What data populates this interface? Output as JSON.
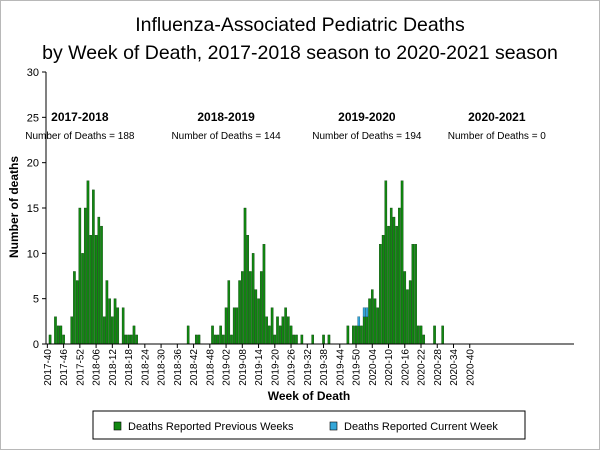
{
  "chart_data": {
    "type": "bar",
    "title_line1": "Influenza-Associated Pediatric Deaths",
    "title_line2": "by Week of Death, 2017-2018 season to 2020-2021 season",
    "xlabel": "Week of Death",
    "ylabel": "Number of deaths",
    "ylim": [
      0,
      30
    ],
    "yticks": [
      0,
      5,
      10,
      15,
      20,
      25,
      30
    ],
    "grid": false,
    "legend_position": "bottom",
    "colors": {
      "previous": "#118811",
      "current": "#33a6d8",
      "edge": "#003300"
    },
    "x_tick_labels": [
      "2017-40",
      "2017-46",
      "2017-52",
      "2018-06",
      "2018-12",
      "2018-18",
      "2018-24",
      "2018-30",
      "2018-36",
      "2018-42",
      "2018-48",
      "2019-02",
      "2019-08",
      "2019-14",
      "2019-20",
      "2019-26",
      "2019-32",
      "2019-38",
      "2019-44",
      "2019-50",
      "2020-04",
      "2020-10",
      "2020-16",
      "2020-22",
      "2020-28",
      "2020-34",
      "2020-40"
    ],
    "season_labels": [
      {
        "name": "2017-2018",
        "deaths": "Number of Deaths = 188",
        "week_index": 12
      },
      {
        "name": "2018-2019",
        "deaths": "Number of Deaths = 144",
        "week_index": 66
      },
      {
        "name": "2019-2020",
        "deaths": "Number of Deaths = 194",
        "week_index": 118
      },
      {
        "name": "2020-2021",
        "deaths": "Number of Deaths = 0",
        "week_index": 166
      }
    ],
    "series": [
      {
        "name": "Deaths Reported Previous Weeks",
        "values": [
          0,
          1,
          0,
          3,
          2,
          2,
          1,
          0,
          0,
          3,
          8,
          7,
          15,
          10,
          15,
          18,
          12,
          17,
          12,
          14,
          13,
          3,
          7,
          5,
          3,
          5,
          4,
          0,
          4,
          1,
          1,
          1,
          2,
          1,
          0,
          0,
          0,
          0,
          0,
          0,
          0,
          0,
          0,
          0,
          0,
          0,
          0,
          0,
          0,
          0,
          0,
          0,
          2,
          0,
          0,
          1,
          1,
          0,
          0,
          0,
          0,
          2,
          1,
          1,
          2,
          1,
          4,
          7,
          1,
          4,
          4,
          7,
          8,
          15,
          12,
          8,
          10,
          6,
          5,
          8,
          11,
          3,
          2,
          4,
          1,
          3,
          2,
          3,
          4,
          3,
          2,
          1,
          1,
          0,
          1,
          0,
          0,
          0,
          1,
          0,
          0,
          0,
          1,
          0,
          1,
          0,
          0,
          0,
          0,
          0,
          0,
          2,
          0,
          2,
          2,
          2,
          2,
          3,
          3,
          5,
          6,
          5,
          4,
          11,
          12,
          18,
          13,
          15,
          14,
          13,
          15,
          18,
          8,
          6,
          7,
          11,
          11,
          2,
          2,
          1,
          0,
          0,
          0,
          2,
          0,
          0,
          2,
          0,
          0,
          0,
          0,
          0,
          0,
          0,
          0,
          0,
          0,
          0,
          0,
          0,
          0,
          0,
          0,
          0,
          0,
          0,
          0,
          0,
          0,
          0,
          0,
          0,
          0,
          0,
          0,
          0,
          0,
          0,
          0,
          0,
          0,
          0,
          0,
          0,
          0,
          0,
          0,
          0,
          0,
          0,
          0,
          0,
          0,
          0,
          0
        ]
      },
      {
        "name": "Deaths Reported Current Week",
        "values": [
          0,
          0,
          0,
          0,
          0,
          0,
          0,
          0,
          0,
          0,
          0,
          0,
          0,
          0,
          0,
          0,
          0,
          0,
          0,
          0,
          0,
          0,
          0,
          0,
          0,
          0,
          0,
          0,
          0,
          0,
          0,
          0,
          0,
          0,
          0,
          0,
          0,
          0,
          0,
          0,
          0,
          0,
          0,
          0,
          0,
          0,
          0,
          0,
          0,
          0,
          0,
          0,
          0,
          0,
          0,
          0,
          0,
          0,
          0,
          0,
          0,
          0,
          0,
          0,
          0,
          0,
          0,
          0,
          0,
          0,
          0,
          0,
          0,
          0,
          0,
          0,
          0,
          0,
          0,
          0,
          0,
          0,
          0,
          0,
          0,
          0,
          0,
          0,
          0,
          0,
          0,
          0,
          0,
          0,
          0,
          0,
          0,
          0,
          0,
          0,
          0,
          0,
          0,
          0,
          0,
          0,
          0,
          0,
          0,
          0,
          0,
          0,
          0,
          0,
          0,
          1,
          0,
          1,
          1,
          0,
          0,
          0,
          0,
          0,
          0,
          0,
          0,
          0,
          0,
          0,
          0,
          0,
          0,
          0,
          0,
          0,
          0,
          0,
          0,
          0,
          0,
          0,
          0,
          0,
          0,
          0,
          0,
          0,
          0,
          0,
          0,
          0,
          0,
          0,
          0,
          0,
          0,
          0,
          0,
          0,
          0,
          0,
          0,
          0,
          0,
          0,
          0,
          0,
          0,
          0,
          0,
          0,
          0,
          0,
          0,
          0,
          0,
          0,
          0,
          0,
          0,
          0,
          0,
          0,
          0,
          0,
          0,
          0,
          0,
          0,
          0,
          0,
          0,
          0,
          0,
          0,
          0,
          0
        ]
      }
    ]
  }
}
